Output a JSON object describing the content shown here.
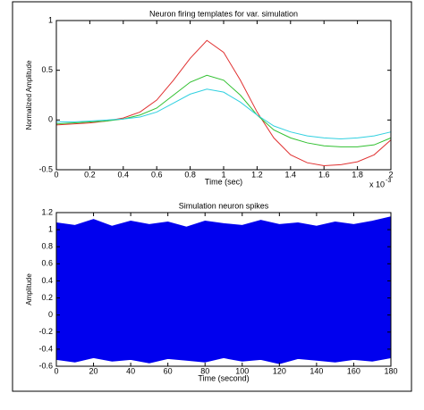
{
  "chart_data": [
    {
      "type": "line",
      "title": "Neuron firing templates for var. simulation",
      "xlabel": "Time (sec)",
      "ylabel": "Normalized Amplitude",
      "x_multiplier": "x 10",
      "x_multiplier_exp": "-3",
      "x": [
        0,
        0.1,
        0.2,
        0.3,
        0.4,
        0.5,
        0.6,
        0.7,
        0.8,
        0.9,
        1.0,
        1.1,
        1.2,
        1.3,
        1.4,
        1.5,
        1.6,
        1.7,
        1.8,
        1.9,
        2.0
      ],
      "series": [
        {
          "color": "#e03030",
          "values": [
            -0.05,
            -0.04,
            -0.03,
            -0.01,
            0.02,
            0.08,
            0.2,
            0.4,
            0.62,
            0.8,
            0.68,
            0.4,
            0.08,
            -0.18,
            -0.35,
            -0.43,
            -0.46,
            -0.45,
            -0.42,
            -0.35,
            -0.2
          ]
        },
        {
          "color": "#30c030",
          "values": [
            -0.04,
            -0.03,
            -0.02,
            -0.01,
            0.01,
            0.05,
            0.12,
            0.25,
            0.38,
            0.45,
            0.4,
            0.25,
            0.05,
            -0.1,
            -0.18,
            -0.23,
            -0.26,
            -0.27,
            -0.27,
            -0.25,
            -0.18
          ]
        },
        {
          "color": "#30d0e0",
          "values": [
            -0.02,
            -0.02,
            -0.01,
            0,
            0.01,
            0.03,
            0.08,
            0.17,
            0.26,
            0.31,
            0.28,
            0.18,
            0.05,
            -0.06,
            -0.12,
            -0.16,
            -0.18,
            -0.19,
            -0.18,
            -0.16,
            -0.12
          ]
        }
      ],
      "xlim": [
        0,
        2
      ],
      "ylim": [
        -0.5,
        1
      ],
      "xticks": [
        0,
        0.2,
        0.4,
        0.6,
        0.8,
        1,
        1.2,
        1.4,
        1.6,
        1.8,
        2
      ],
      "yticks": [
        -0.5,
        0,
        0.5,
        1
      ]
    },
    {
      "type": "band",
      "title": "Simulation neuron spikes",
      "xlabel": "Time (second)",
      "ylabel": "Amplitude",
      "x": [
        0,
        10,
        20,
        30,
        40,
        50,
        60,
        70,
        80,
        90,
        100,
        110,
        120,
        130,
        140,
        150,
        160,
        170,
        180
      ],
      "color": "#0000ee",
      "high": [
        1.08,
        1.05,
        1.12,
        1.04,
        1.1,
        1.06,
        1.09,
        1.03,
        1.1,
        1.07,
        1.05,
        1.11,
        1.06,
        1.08,
        1.04,
        1.09,
        1.06,
        1.1,
        1.15
      ],
      "low": [
        -0.52,
        -0.55,
        -0.5,
        -0.54,
        -0.52,
        -0.56,
        -0.51,
        -0.53,
        -0.55,
        -0.5,
        -0.54,
        -0.52,
        -0.57,
        -0.51,
        -0.53,
        -0.55,
        -0.52,
        -0.54,
        -0.5
      ],
      "xlim": [
        0,
        180
      ],
      "ylim": [
        -0.6,
        1.2
      ],
      "xticks": [
        0,
        20,
        40,
        60,
        80,
        100,
        120,
        140,
        160,
        180
      ],
      "yticks": [
        -0.6,
        -0.4,
        -0.2,
        0,
        0.2,
        0.4,
        0.6,
        0.8,
        1,
        1.2
      ]
    }
  ]
}
